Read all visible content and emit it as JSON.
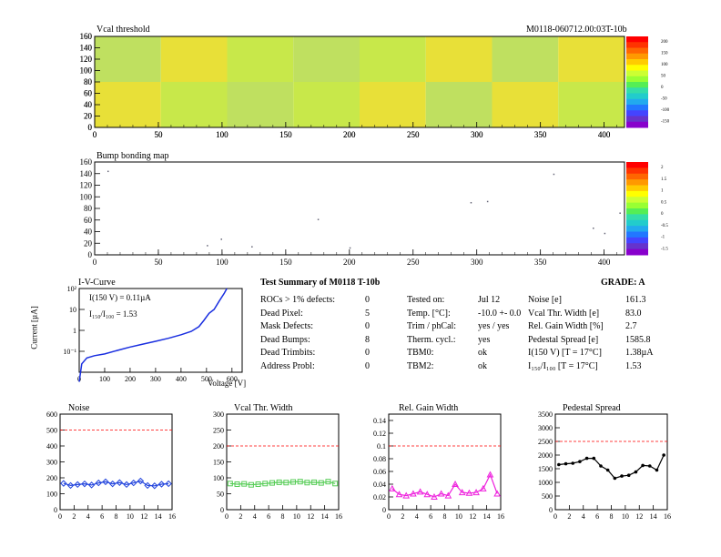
{
  "header": {
    "map_title": "Vcal threshold",
    "module_id": "M0118-060712.00:03T-10b",
    "bump_title": "Bump bonding map"
  },
  "maps": {
    "x_ticks": [
      "0",
      "50",
      "100",
      "150",
      "200",
      "250",
      "300",
      "350",
      "400"
    ],
    "y_ticks": [
      "0",
      "20",
      "40",
      "60",
      "80",
      "100",
      "120",
      "140",
      "160"
    ],
    "xlim": [
      0,
      416
    ],
    "ylim": [
      0,
      160
    ],
    "vcal_palette_labels": [
      "200",
      "150",
      "100",
      "50",
      "0",
      "-50",
      "-100",
      "-150"
    ],
    "bump_palette_labels": [
      "2",
      "1.5",
      "1",
      "0.5",
      "0",
      "-0.5",
      "-1",
      "-1.5"
    ],
    "vcal_colors": {
      "a": "#c8e84a",
      "b": "#e8e038",
      "c": "#bfe060",
      "d": "#dde44a"
    },
    "bump_pixels": [
      {
        "x": 10,
        "y": 145
      },
      {
        "x": 88,
        "y": 17
      },
      {
        "x": 99,
        "y": 28
      },
      {
        "x": 123,
        "y": 15
      },
      {
        "x": 175,
        "y": 62
      },
      {
        "x": 200,
        "y": 13
      },
      {
        "x": 295,
        "y": 91
      },
      {
        "x": 308,
        "y": 93
      },
      {
        "x": 360,
        "y": 140
      },
      {
        "x": 391,
        "y": 47
      },
      {
        "x": 400,
        "y": 38
      },
      {
        "x": 412,
        "y": 73
      }
    ]
  },
  "iv": {
    "title": "I-V-Curve",
    "ylabel": "Current [µA]",
    "xlabel": "Voltage [V]",
    "ann1": "I(150 V) = 0.11µA",
    "ann2": "I₁₅₀/I₁₀₀ = 1.53",
    "x_ticks": [
      "0",
      "100",
      "200",
      "300",
      "400",
      "500",
      "600"
    ],
    "y_ticks": [
      "10⁻¹",
      "1",
      "10",
      "10²"
    ],
    "curve": [
      {
        "v": 0,
        "i": 0.0035
      },
      {
        "v": 10,
        "i": 0.025
      },
      {
        "v": 30,
        "i": 0.048
      },
      {
        "v": 60,
        "i": 0.062
      },
      {
        "v": 100,
        "i": 0.075
      },
      {
        "v": 150,
        "i": 0.11
      },
      {
        "v": 200,
        "i": 0.16
      },
      {
        "v": 250,
        "i": 0.22
      },
      {
        "v": 300,
        "i": 0.3
      },
      {
        "v": 350,
        "i": 0.42
      },
      {
        "v": 400,
        "i": 0.62
      },
      {
        "v": 440,
        "i": 0.9
      },
      {
        "v": 470,
        "i": 1.5
      },
      {
        "v": 490,
        "i": 3
      },
      {
        "v": 510,
        "i": 6.5
      },
      {
        "v": 530,
        "i": 10
      },
      {
        "v": 550,
        "i": 25
      },
      {
        "v": 570,
        "i": 60
      },
      {
        "v": 580,
        "i": 100
      }
    ]
  },
  "summary": {
    "title": "Test Summary of M0118     T-10b",
    "grade": "GRADE:  A",
    "left": [
      {
        "label": "ROCs > 1% defects:",
        "value": "0"
      },
      {
        "label": "Dead Pixel:",
        "value": "5"
      },
      {
        "label": "Mask Defects:",
        "value": "0"
      },
      {
        "label": "Dead Bumps:",
        "value": "8"
      },
      {
        "label": "Dead Trimbits:",
        "value": "0"
      },
      {
        "label": "Address Probl:",
        "value": "0"
      }
    ],
    "mid": [
      {
        "label": "Tested on:",
        "value": "Jul 12"
      },
      {
        "label": "Temp. [°C]:",
        "value": "-10.0 +- 0.0"
      },
      {
        "label": "Trim / phCal:",
        "value": "yes / yes"
      },
      {
        "label": "Therm. cycl.:",
        "value": "yes"
      },
      {
        "label": "TBM0:",
        "value": "ok"
      },
      {
        "label": "TBM2:",
        "value": "ok"
      }
    ],
    "right": [
      {
        "label": "Noise [e]",
        "value": "161.3"
      },
      {
        "label": "Vcal Thr. Width [e]",
        "value": "83.0"
      },
      {
        "label": "Rel. Gain Width [%]",
        "value": "2.7"
      },
      {
        "label": "Pedestal Spread [e]",
        "value": "1585.8"
      },
      {
        "label": "I(150 V) [T = 17°C]",
        "value": "1.38µA"
      },
      {
        "label": "I₁₅₀/I₁₀₀  [T = 17°C]",
        "value": "1.53"
      }
    ]
  },
  "chart_data": [
    {
      "type": "line",
      "title": "Noise",
      "x": [
        0,
        1,
        2,
        3,
        4,
        5,
        6,
        7,
        8,
        9,
        10,
        11,
        12,
        13,
        14,
        15
      ],
      "values": [
        165,
        152,
        158,
        162,
        155,
        168,
        175,
        162,
        170,
        158,
        168,
        180,
        152,
        150,
        160,
        163
      ],
      "xlim": [
        0,
        16
      ],
      "ylim": [
        0,
        600
      ],
      "x_ticks": [
        0,
        2,
        4,
        6,
        8,
        10,
        12,
        14,
        16
      ],
      "y_ticks": [
        0,
        100,
        200,
        300,
        400,
        500,
        600
      ],
      "threshold": 500,
      "color": "#2244dd",
      "marker": "diamond"
    },
    {
      "type": "line",
      "title": "Vcal Thr. Width",
      "x": [
        0,
        1,
        2,
        3,
        4,
        5,
        6,
        7,
        8,
        9,
        10,
        11,
        12,
        13,
        14,
        15
      ],
      "values": [
        82,
        80,
        81,
        78,
        80,
        82,
        84,
        86,
        85,
        87,
        88,
        85,
        86,
        84,
        88,
        82
      ],
      "xlim": [
        0,
        16
      ],
      "ylim": [
        0,
        300
      ],
      "x_ticks": [
        0,
        2,
        4,
        6,
        8,
        10,
        12,
        14,
        16
      ],
      "y_ticks": [
        0,
        50,
        100,
        150,
        200,
        250,
        300
      ],
      "threshold": 200,
      "color": "#55cc55",
      "marker": "square"
    },
    {
      "type": "line",
      "title": "Rel. Gain Width",
      "x": [
        0,
        1,
        2,
        3,
        4,
        5,
        6,
        7,
        8,
        9,
        10,
        11,
        12,
        13,
        14,
        15
      ],
      "values": [
        0.033,
        0.024,
        0.022,
        0.025,
        0.028,
        0.024,
        0.02,
        0.025,
        0.022,
        0.04,
        0.027,
        0.026,
        0.027,
        0.033,
        0.055,
        0.025
      ],
      "xlim": [
        0,
        16
      ],
      "ylim": [
        0,
        0.15
      ],
      "x_ticks": [
        0,
        2,
        4,
        6,
        8,
        10,
        12,
        14,
        16
      ],
      "y_ticks": [
        0,
        0.02,
        0.04,
        0.06,
        0.08,
        0.1,
        0.12,
        0.14
      ],
      "threshold": 0.1,
      "color": "#ee22dd",
      "marker": "triangle"
    },
    {
      "type": "line",
      "title": "Pedestal Spread",
      "x": [
        0,
        1,
        2,
        3,
        4,
        5,
        6,
        7,
        8,
        9,
        10,
        11,
        12,
        13,
        14,
        15
      ],
      "values": [
        1650,
        1680,
        1700,
        1760,
        1880,
        1880,
        1600,
        1450,
        1150,
        1230,
        1260,
        1380,
        1620,
        1600,
        1450,
        2000
      ],
      "xlim": [
        0,
        16
      ],
      "ylim": [
        0,
        3500
      ],
      "x_ticks": [
        0,
        2,
        4,
        6,
        8,
        10,
        12,
        14,
        16
      ],
      "y_ticks": [
        0,
        500,
        1000,
        1500,
        2000,
        2500,
        3000,
        3500
      ],
      "threshold": 2500,
      "color": "#000000",
      "marker": "circle"
    }
  ]
}
